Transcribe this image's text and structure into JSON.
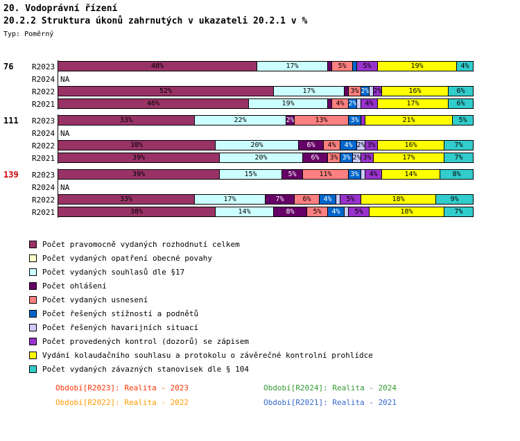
{
  "header": {
    "title1": "20. Vodoprávní řízení",
    "title2": "20.2.2 Struktura úkonů zahrnutých v ukazateli 20.2.1 v %",
    "type_label": "Typ: Poměrný"
  },
  "chart_data": {
    "type": "bar",
    "orientation": "horizontal",
    "stacked": true,
    "unit": "%",
    "xlim": [
      0,
      100
    ],
    "na_text": "NA",
    "legend_position": "bottom-left",
    "series": [
      {
        "name": "Počet pravomocně vydaných rozhodnutí celkem",
        "color": "#993366"
      },
      {
        "name": "Počet vydaných opatření obecné povahy",
        "color": "#FFFFCC"
      },
      {
        "name": "Počet vydaných souhlasů dle §17",
        "color": "#CCFFFF"
      },
      {
        "name": "Počet ohlášení",
        "color": "#660066"
      },
      {
        "name": "Počet vydaných usnesení",
        "color": "#FF8080"
      },
      {
        "name": "Počet řešených stížností a podnětů",
        "color": "#0066CC"
      },
      {
        "name": "Počet řešených havarijních situací",
        "color": "#CCCCFF"
      },
      {
        "name": "Počet provedených kontrol (dozorů) se zápisem",
        "color": "#9933CC"
      },
      {
        "name": "Vydání kolaudačního souhlasu a protokolu o závěrečné kontrolní prohlídce",
        "color": "#FFFF00"
      },
      {
        "name": "Počet vydaných závazných stanovisek dle § 104",
        "color": "#33CCCC"
      }
    ],
    "groups": [
      {
        "id": "76",
        "id_color": "#000000",
        "rows": [
          {
            "label": "R2023",
            "na": false,
            "values": [
              48,
              0,
              17,
              1,
              5,
              1,
              0,
              5,
              19,
              4
            ]
          },
          {
            "label": "R2024",
            "na": true,
            "values": []
          },
          {
            "label": "R2022",
            "na": false,
            "values": [
              52,
              0,
              17,
              1,
              3,
              2,
              1,
              2,
              16,
              6
            ]
          },
          {
            "label": "R2021",
            "na": false,
            "values": [
              46,
              0,
              19,
              1,
              4,
              2,
              1,
              4,
              17,
              6
            ]
          }
        ]
      },
      {
        "id": "111",
        "id_color": "#000000",
        "rows": [
          {
            "label": "R2023",
            "na": false,
            "values": [
              33,
              0,
              22,
              2,
              13,
              3,
              0,
              1,
              21,
              5
            ]
          },
          {
            "label": "R2024",
            "na": true,
            "values": []
          },
          {
            "label": "R2022",
            "na": false,
            "values": [
              38,
              0,
              20,
              6,
              4,
              4,
              2,
              3,
              16,
              7
            ]
          },
          {
            "label": "R2021",
            "na": false,
            "values": [
              39,
              0,
              20,
              6,
              3,
              3,
              2,
              3,
              17,
              7
            ]
          }
        ]
      },
      {
        "id": "139",
        "id_color": "#CC0000",
        "rows": [
          {
            "label": "R2023",
            "na": false,
            "values": [
              39,
              0,
              15,
              5,
              11,
              3,
              1,
              4,
              14,
              8
            ]
          },
          {
            "label": "R2024",
            "na": true,
            "values": []
          },
          {
            "label": "R2022",
            "na": false,
            "values": [
              33,
              0,
              17,
              7,
              6,
              4,
              1,
              5,
              18,
              9
            ]
          },
          {
            "label": "R2021",
            "na": false,
            "values": [
              38,
              0,
              14,
              8,
              5,
              4,
              1,
              5,
              18,
              7
            ]
          }
        ]
      }
    ]
  },
  "period_legend": [
    {
      "text": "Období[R2023]: Realita - 2023",
      "color": "#FF3300"
    },
    {
      "text": "Období[R2024]: Realita - 2024",
      "color": "#339933"
    },
    {
      "text": "Období[R2022]: Realita - 2022",
      "color": "#FF9900"
    },
    {
      "text": "Období[R2021]: Realita - 2021",
      "color": "#3366CC"
    }
  ]
}
